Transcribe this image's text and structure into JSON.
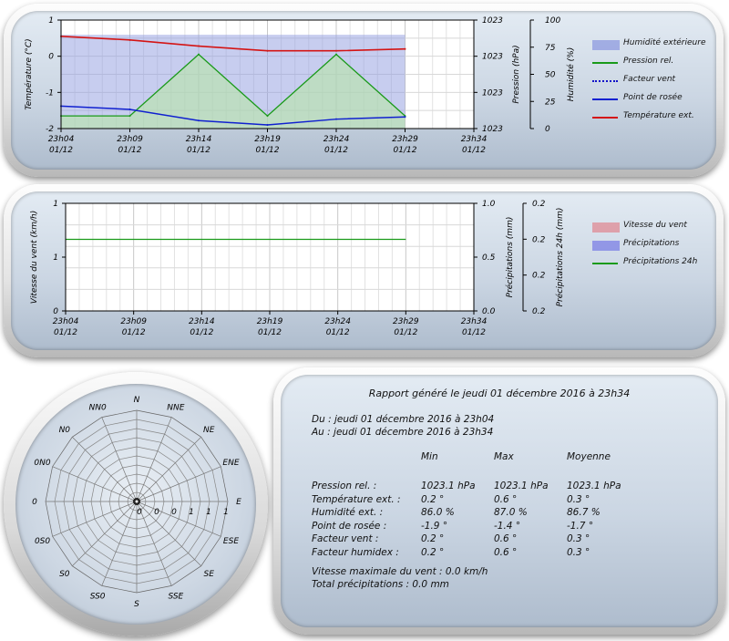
{
  "chart_data": [
    {
      "type": "line",
      "x_ticks": [
        "23h04",
        "23h09",
        "23h14",
        "23h19",
        "23h24",
        "23h29",
        "23h34"
      ],
      "x_ticks_date": "01/12",
      "left_axis": {
        "label": "Température (°C)",
        "ticks": [
          "1",
          "0",
          "-1",
          "-2"
        ],
        "ylim": [
          -2,
          1
        ]
      },
      "right_axis_1": {
        "label": "Pression (hPa)",
        "ticks": [
          "1023",
          "1023",
          "1023",
          "1023"
        ]
      },
      "right_axis_2": {
        "label": "Humidité (%)",
        "ticks": [
          "100",
          "75",
          "50",
          "25",
          "0"
        ],
        "ylim": [
          0,
          100
        ]
      },
      "series": [
        {
          "name": "Humidité extérieure",
          "axis": "humidity",
          "kind": "area",
          "color": "#8f9be0",
          "x": [
            0,
            1,
            2,
            3,
            4,
            5
          ],
          "values": [
            86.5,
            86.5,
            86.5,
            86.5,
            86.5,
            86.5
          ]
        },
        {
          "name": "Pression rel.",
          "axis": "temperature",
          "kind": "line",
          "color": "#1a9a1a",
          "fill": "#b7e6a6",
          "x": [
            0,
            1,
            2,
            3,
            4,
            5
          ],
          "values": [
            -1.65,
            -1.65,
            0.05,
            -1.65,
            0.05,
            -1.65
          ]
        },
        {
          "name": "Facteur vent",
          "axis": "temperature",
          "kind": "dotted",
          "color": "#1010c8",
          "x": [],
          "values": []
        },
        {
          "name": "Point de rosée",
          "axis": "temperature",
          "kind": "line",
          "color": "#1020d0",
          "x": [
            0,
            1,
            2,
            3,
            4,
            5
          ],
          "values": [
            -1.38,
            -1.47,
            -1.78,
            -1.9,
            -1.74,
            -1.68
          ]
        },
        {
          "name": "Température ext.",
          "axis": "temperature",
          "kind": "line",
          "color": "#d41414",
          "x": [
            0,
            1,
            2,
            3,
            4,
            5
          ],
          "values": [
            0.55,
            0.45,
            0.28,
            0.15,
            0.15,
            0.2
          ]
        }
      ]
    },
    {
      "type": "line",
      "x_ticks": [
        "23h04",
        "23h09",
        "23h14",
        "23h19",
        "23h24",
        "23h29",
        "23h34"
      ],
      "x_ticks_date": "01/12",
      "left_axis": {
        "label": "Vitesse du vent (km/h)",
        "ticks": [
          "1",
          "1",
          "0"
        ]
      },
      "right_axis_1": {
        "label": "Précipitations (mm)",
        "ticks": [
          "1.0",
          "0.5",
          "0.0"
        ],
        "ylim": [
          0,
          1
        ]
      },
      "right_axis_2": {
        "label": "Précipitations 24h (mm)",
        "ticks": [
          "0.2",
          "0.2",
          "0.2",
          "0.2"
        ]
      },
      "series": [
        {
          "name": "Vitesse du vent",
          "kind": "bar",
          "color": "#e08b95",
          "x": [],
          "values": []
        },
        {
          "name": "Précipitations",
          "kind": "bar",
          "color": "#7c80e6",
          "x": [],
          "values": []
        },
        {
          "name": "Précipitations 24h",
          "kind": "line",
          "color": "#1a9a1a",
          "x": [
            0,
            5
          ],
          "values": [
            0.2,
            0.2
          ]
        }
      ]
    },
    {
      "type": "polar",
      "directions": [
        "N",
        "NNE",
        "NE",
        "ENE",
        "E",
        "ESE",
        "SE",
        "SSE",
        "S",
        "SS0",
        "S0",
        "0S0",
        "0",
        "0N0",
        "N0",
        "NN0"
      ],
      "radial_ticks": [
        "0",
        "0",
        "0",
        "1",
        "1",
        "1"
      ]
    }
  ],
  "report": {
    "title": "Rapport généré le jeudi 01 décembre 2016 à 23h34",
    "from": "Du : jeudi 01 décembre 2016 à 23h04",
    "to": "Au : jeudi 01 décembre 2016 à 23h34",
    "headers": [
      "Min",
      "Max",
      "Moyenne"
    ],
    "rows": [
      {
        "label": "Pression rel. :",
        "min": "1023.1 hPa",
        "max": "1023.1 hPa",
        "avg": "1023.1 hPa"
      },
      {
        "label": "Température ext. :",
        "min": "0.2 °",
        "max": "0.6 °",
        "avg": "0.3 °"
      },
      {
        "label": "Humidité ext. :",
        "min": "86.0 %",
        "max": "87.0 %",
        "avg": "86.7 %"
      },
      {
        "label": "Point de rosée :",
        "min": "-1.9 °",
        "max": "-1.4 °",
        "avg": "-1.7 °"
      },
      {
        "label": "Facteur vent :",
        "min": "0.2 °",
        "max": "0.6 °",
        "avg": "0.3 °"
      },
      {
        "label": "Facteur humidex :",
        "min": "0.2 °",
        "max": "0.6 °",
        "avg": "0.3 °"
      }
    ],
    "max_wind": "Vitesse maximale du vent : 0.0 km/h",
    "total_rain": "Total précipitations : 0.0 mm"
  }
}
